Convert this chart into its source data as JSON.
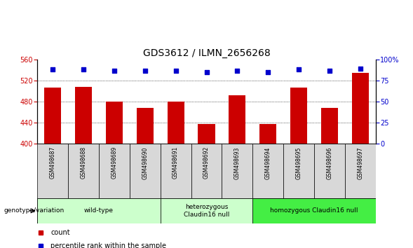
{
  "title": "GDS3612 / ILMN_2656268",
  "samples": [
    "GSM498687",
    "GSM498688",
    "GSM498689",
    "GSM498690",
    "GSM498691",
    "GSM498692",
    "GSM498693",
    "GSM498694",
    "GSM498695",
    "GSM498696",
    "GSM498697"
  ],
  "bar_values": [
    507,
    508,
    480,
    468,
    480,
    437,
    492,
    437,
    507,
    468,
    535
  ],
  "percentile_values": [
    88,
    88,
    87,
    87,
    87,
    85,
    87,
    85,
    88,
    87,
    89
  ],
  "ylim_left": [
    400,
    560
  ],
  "ylim_right": [
    0,
    100
  ],
  "yticks_left": [
    400,
    440,
    480,
    520,
    560
  ],
  "yticks_right": [
    0,
    25,
    50,
    75,
    100
  ],
  "bar_color": "#cc0000",
  "dot_color": "#0000cc",
  "bar_width": 0.55,
  "groups": [
    {
      "label": "wild-type",
      "start": 0,
      "end": 3,
      "color": "#ccffcc"
    },
    {
      "label": "heterozygous\nClaudin16 null",
      "start": 4,
      "end": 6,
      "color": "#ccffcc"
    },
    {
      "label": "homozygous Claudin16 null",
      "start": 7,
      "end": 10,
      "color": "#44ee44"
    }
  ],
  "xlabel_color": "#cc0000",
  "ylabel_right_color": "#0000cc",
  "title_fontsize": 10,
  "tick_fontsize": 7,
  "sample_fontsize": 5.5,
  "group_fontsize": 6.5,
  "legend_fontsize": 7
}
